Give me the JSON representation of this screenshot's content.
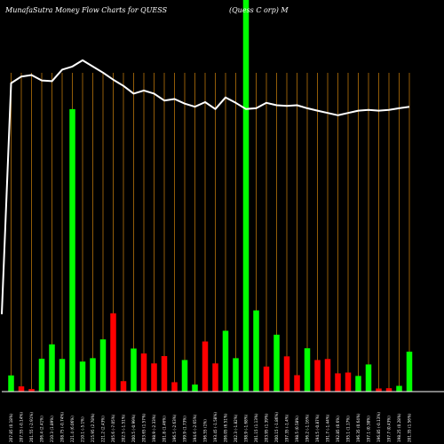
{
  "chart_data": {
    "type": "bar",
    "title_left": "MunafaSutra  Money Flow  Charts for QUESS",
    "title_right": "(Quess C                    orp) M",
    "xlabel": "",
    "ylabel": "",
    "grid": "vertical",
    "colors": {
      "background": "#000000",
      "up": "#00ff00",
      "down": "#ff0000",
      "grid": "#b8730a",
      "line": "#ffffff",
      "axis": "#ffffff"
    },
    "categories": [
      "207.85 (0.18%)",
      "207.55 (-0.14%)",
      "201.55 (-2.91%)",
      "206.4 (2.41%)",
      "210.3 (1.89%)",
      "208.75 (-0.74%)",
      "221.4 (6.06%)",
      "210.1 (-5.1%)",
      "215.95 (2.78%)",
      "221.2 (2.43%)",
      "205.6 (-7.05%)",
      "202.5 (-1.51%)",
      "200.5 (-0.99%)",
      "203.65 (1.57%)",
      "198.9 (-2.33%)",
      "201.8 (1.46%)",
      "196.5 (-2.63%)",
      "199.9 (1.73%)",
      "194.6 (-2.65%)",
      "196.55 (1%)",
      "193.45 (-1.58%)",
      "206.05 (6.51%)",
      "202.3 (-1.82%)",
      "198.9 (-1.68%)",
      "201.15 (1.13%)",
      "203.95 (1.39%)",
      "200.15 (-1.86%)",
      "197.35 (-1.4%)",
      "198.5 (0.58%)",
      "196.2 (-1.16%)",
      "194.5 (-0.87%)",
      "191.7 (-1.44%)",
      "192.85 (0.6%)",
      "195.1 (1.17%)",
      "196.35 (0.64%)",
      "197.1 (0.38%)",
      "196.85 (-0.13%)",
      "197.7 (0.43%)",
      "198.25 (0.28%)",
      "201.35 (1.56%)"
    ],
    "values": [
      62,
      -20,
      -10,
      126,
      181,
      125,
      1082,
      115,
      128,
      200,
      -300,
      -40,
      165,
      -146,
      -108,
      -136,
      -36,
      121,
      27,
      -192,
      -108,
      233,
      128,
      1500,
      311,
      -96,
      218,
      -135,
      -63,
      166,
      -121,
      -125,
      -70,
      -73,
      60,
      104,
      -12,
      -13,
      22,
      153
    ],
    "price_line": [
      207.85,
      208.7,
      208.9,
      208.2,
      208.1,
      209.6,
      210.0,
      210.8,
      210.0,
      209.2,
      208.3,
      207.5,
      206.5,
      206.9,
      206.5,
      205.6,
      205.8,
      205.2,
      204.8,
      205.4,
      204.5,
      206.0,
      205.3,
      204.5,
      204.6,
      205.3,
      205.0,
      204.9,
      205.0,
      204.6,
      204.3,
      204.0,
      203.7,
      204.0,
      204.3,
      204.4,
      204.3,
      204.4,
      204.6,
      204.8
    ],
    "line_start_value": 178.0,
    "line_ylim": [
      168,
      214
    ]
  }
}
